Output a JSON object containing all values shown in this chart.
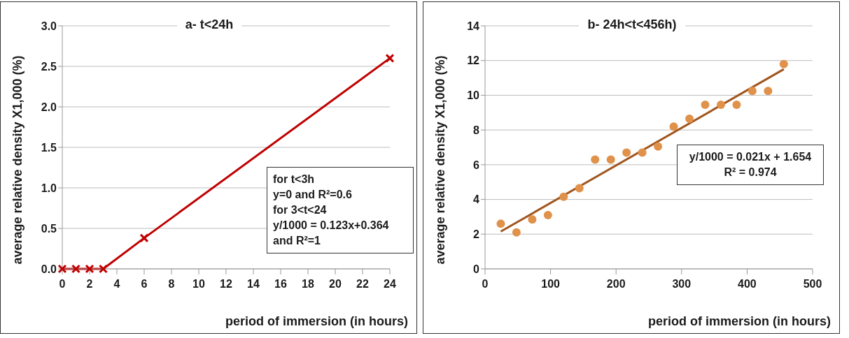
{
  "chart_data": [
    {
      "type": "line",
      "title": "a- t<24h",
      "xlabel": "period of immersion (in hours)",
      "ylabel": "average relative density X1,000 (%)",
      "x": [
        0,
        1,
        2,
        3,
        6,
        24
      ],
      "series": [
        {
          "color": "#c00000",
          "values": [
            0,
            0,
            0,
            0,
            0.38,
            2.6
          ]
        }
      ],
      "xlim": [
        0,
        24
      ],
      "xticks": [
        0,
        2,
        4,
        6,
        8,
        10,
        12,
        14,
        16,
        18,
        20,
        22,
        24
      ],
      "ylim": [
        0,
        3
      ],
      "yticks": [
        {
          "value": 0,
          "label": "0.0"
        },
        {
          "value": 0.5,
          "label": "0.5"
        },
        {
          "value": 1,
          "label": "1.0"
        },
        {
          "value": 1.5,
          "label": "1.5"
        },
        {
          "value": 2,
          "label": "2.0"
        },
        {
          "value": 2.5,
          "label": "2.5"
        },
        {
          "value": 3,
          "label": "3.0"
        }
      ],
      "grid": "y",
      "marker": "cross",
      "line_style": "solid",
      "annotations": [
        "for t<3h",
        "y=0  and R²=0.6",
        "for 3<t<24",
        "y/1000 = 0.123x+0.364",
        "and  R²=1"
      ]
    },
    {
      "type": "scatter",
      "title": "b- 24h<t<456h)",
      "xlabel": "period of immersion (in hours)",
      "ylabel": "average relative density X1,000 (%)",
      "x": [
        24,
        48,
        72,
        96,
        120,
        144,
        168,
        192,
        216,
        240,
        264,
        288,
        312,
        336,
        360,
        384,
        408,
        432,
        456
      ],
      "series": [
        {
          "color": "#e0914a",
          "marker": "circle",
          "values": [
            2.6,
            2.1,
            2.85,
            3.1,
            4.15,
            4.65,
            6.3,
            6.3,
            6.7,
            6.7,
            7.05,
            8.2,
            8.65,
            9.45,
            9.45,
            9.45,
            10.25,
            10.25,
            11.8
          ]
        },
        {
          "type": "line",
          "color": "#a0561e",
          "marker": "none",
          "x": [
            24,
            456
          ],
          "values": [
            2.15,
            11.5
          ]
        }
      ],
      "xlim": [
        0,
        500
      ],
      "xticks": [
        0,
        100,
        200,
        300,
        400,
        500
      ],
      "ylim": [
        0,
        14
      ],
      "yticks": [
        0,
        2,
        4,
        6,
        8,
        10,
        12,
        14
      ],
      "grid": "y",
      "annotations": [
        "y/1000 = 0.021x + 1.654",
        "R² = 0.974"
      ]
    }
  ]
}
